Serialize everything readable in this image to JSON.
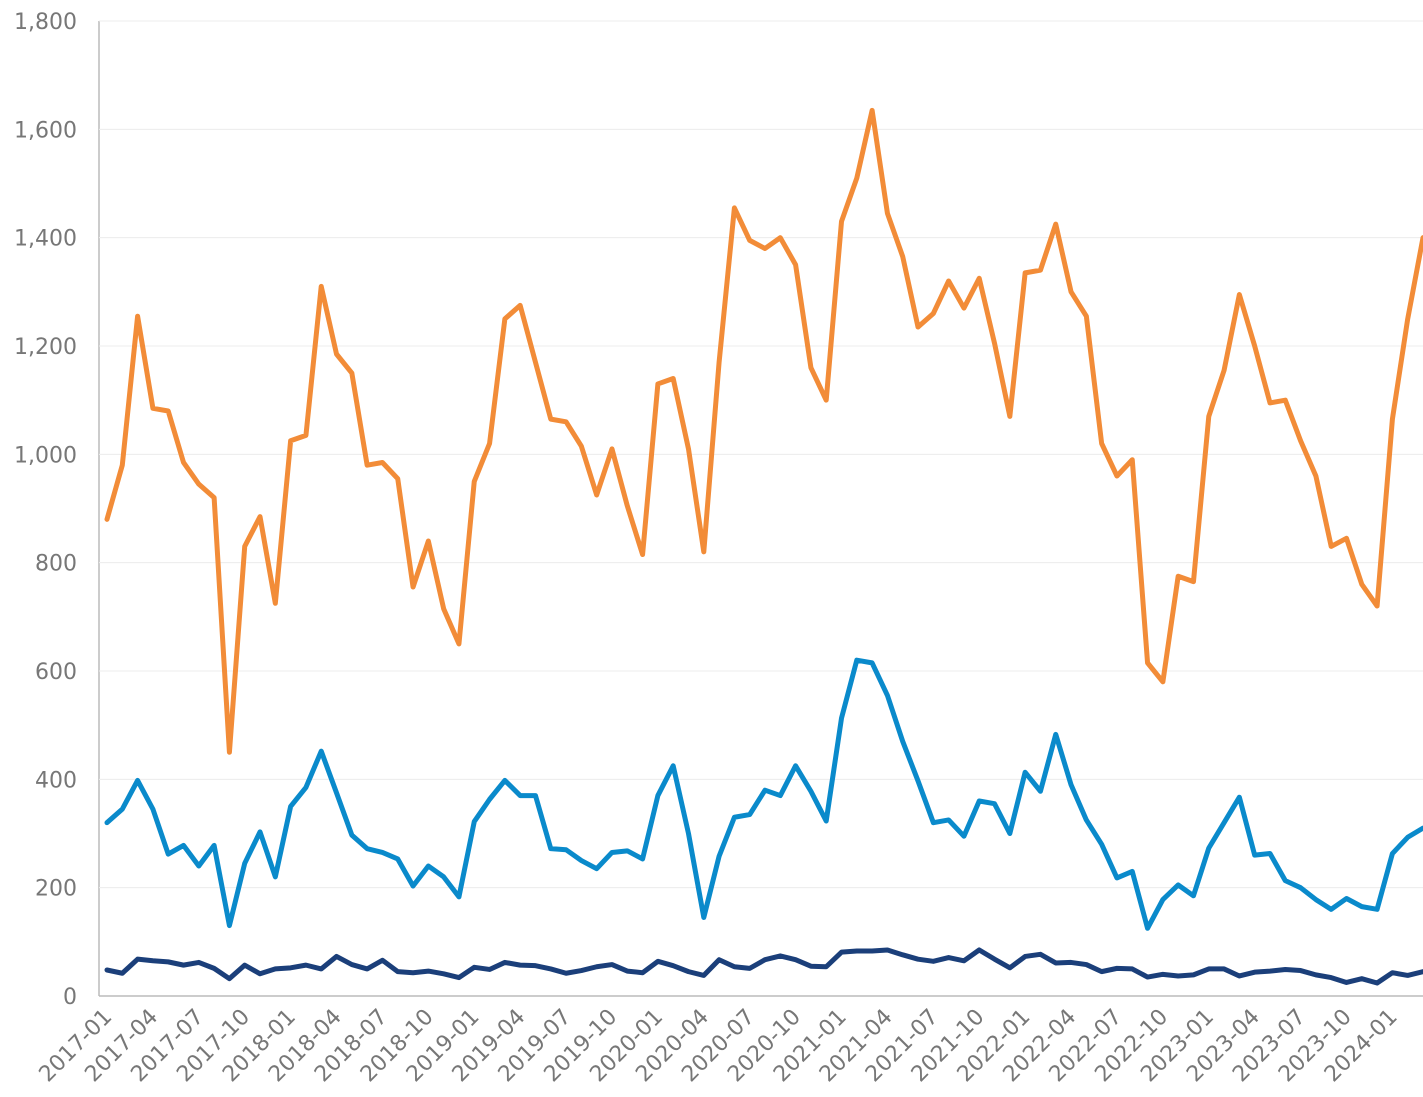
{
  "chart_data": {
    "type": "line",
    "categories": [
      "2017-01",
      null,
      null,
      "2017-04",
      null,
      null,
      "2017-07",
      null,
      null,
      "2017-10",
      null,
      null,
      "2018-01",
      null,
      null,
      "2018-04",
      null,
      null,
      "2018-07",
      null,
      null,
      "2018-10",
      null,
      null,
      "2019-01",
      null,
      null,
      "2019-04",
      null,
      null,
      "2019-07",
      null,
      null,
      "2019-10",
      null,
      null,
      "2020-01",
      null,
      null,
      "2020-04",
      null,
      null,
      "2020-07",
      null,
      null,
      "2020-10",
      null,
      null,
      "2021-01",
      null,
      null,
      "2021-04",
      null,
      null,
      "2021-07",
      null,
      null,
      "2021-10",
      null,
      null,
      "2022-01",
      null,
      null,
      "2022-04",
      null,
      null,
      "2022-07",
      null,
      null,
      "2022-10",
      null,
      null,
      "2023-01",
      null,
      null,
      "2023-04",
      null,
      null,
      "2023-07",
      null,
      null,
      "2023-10",
      null,
      null,
      "2024-01",
      null,
      null
    ],
    "series": [
      {
        "color": "#f28c38",
        "values": [
          880,
          980,
          1255,
          1085,
          1080,
          985,
          945,
          920,
          450,
          830,
          885,
          725,
          1025,
          1035,
          1310,
          1185,
          1150,
          980,
          985,
          955,
          755,
          840,
          715,
          650,
          950,
          1020,
          1250,
          1275,
          1170,
          1065,
          1060,
          1015,
          925,
          1010,
          905,
          815,
          1130,
          1140,
          1010,
          820,
          1170,
          1455,
          1395,
          1380,
          1400,
          1350,
          1160,
          1100,
          1430,
          1510,
          1635,
          1445,
          1365,
          1235,
          1260,
          1320,
          1270,
          1325,
          1205,
          1070,
          1335,
          1340,
          1425,
          1300,
          1255,
          1020,
          960,
          990,
          615,
          580,
          775,
          765,
          1070,
          1155,
          1295,
          1200,
          1095,
          1100,
          1025,
          960,
          830,
          845,
          760,
          720,
          1065,
          1250,
          1400
        ]
      },
      {
        "color": "#0a8acb",
        "values": [
          320,
          345,
          398,
          345,
          262,
          278,
          240,
          278,
          130,
          245,
          303,
          220,
          350,
          385,
          452,
          375,
          297,
          272,
          265,
          253,
          203,
          240,
          220,
          183,
          322,
          363,
          398,
          370,
          370,
          272,
          270,
          250,
          235,
          265,
          268,
          253,
          370,
          425,
          300,
          145,
          258,
          330,
          335,
          380,
          370,
          425,
          378,
          323,
          513,
          620,
          615,
          555,
          470,
          397,
          320,
          325,
          295,
          360,
          355,
          300,
          413,
          378,
          483,
          390,
          325,
          280,
          218,
          230,
          125,
          178,
          205,
          185,
          273,
          320,
          367,
          260,
          263,
          213,
          200,
          178,
          160,
          180,
          165,
          160,
          263,
          293,
          310
        ]
      },
      {
        "color": "#1b3f7a",
        "values": [
          48,
          42,
          68,
          65,
          63,
          57,
          62,
          51,
          32,
          57,
          41,
          50,
          52,
          57,
          50,
          73,
          58,
          50,
          66,
          45,
          43,
          46,
          41,
          34,
          53,
          49,
          62,
          57,
          56,
          50,
          42,
          47,
          54,
          58,
          46,
          43,
          64,
          56,
          45,
          38,
          67,
          54,
          51,
          67,
          74,
          67,
          55,
          54,
          81,
          83,
          83,
          85,
          76,
          68,
          64,
          71,
          65,
          85,
          68,
          52,
          73,
          77,
          61,
          62,
          58,
          45,
          51,
          50,
          35,
          40,
          37,
          39,
          50,
          50,
          37,
          44,
          46,
          49,
          47,
          39,
          34,
          25,
          32,
          24,
          43,
          38,
          45
        ]
      }
    ],
    "ylim": [
      0,
      1800
    ],
    "yticks": [
      0,
      200,
      400,
      600,
      800,
      {
        "value": 1000,
        "label": "1,000"
      },
      {
        "value": 1200,
        "label": "1,200"
      },
      {
        "value": 1400,
        "label": "1,400"
      },
      {
        "value": 1600,
        "label": "1,600"
      },
      {
        "value": 1800,
        "label": "1,800"
      }
    ],
    "grid": true
  }
}
